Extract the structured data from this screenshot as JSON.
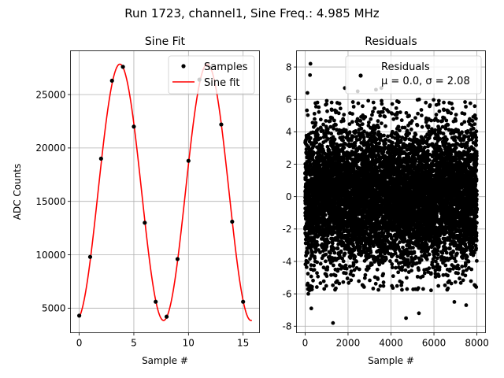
{
  "figure": {
    "suptitle": "Run 1723, channel1, Sine Freq.: 4.985 MHz"
  },
  "colors": {
    "samples": "#000000",
    "fit": "#ff0000",
    "residuals": "#000000",
    "grid": "#b0b0b0"
  },
  "chart_data": [
    {
      "type": "line",
      "title": "Sine Fit",
      "xlabel": "Sample #",
      "ylabel": "ADC Counts",
      "xlim": [
        -0.8,
        16.5
      ],
      "ylim": [
        2700,
        29100
      ],
      "xticks": [
        0,
        5,
        10,
        15
      ],
      "yticks": [
        5000,
        10000,
        15000,
        20000,
        25000
      ],
      "grid": true,
      "legend": {
        "placement": "top-right",
        "entries": [
          "Samples",
          "Sine fit"
        ]
      },
      "series": [
        {
          "name": "Samples",
          "type": "scatter",
          "x": [
            0,
            1,
            2,
            3,
            4,
            5,
            6,
            7,
            8,
            9,
            10,
            11,
            12,
            13,
            14,
            15
          ],
          "y": [
            4300,
            9800,
            19000,
            26300,
            27600,
            22000,
            13000,
            5600,
            4200,
            9600,
            18800,
            26400,
            27500,
            22200,
            13100,
            5600
          ]
        },
        {
          "name": "Sine fit",
          "type": "line",
          "model": {
            "offset": 15850,
            "amplitude": 12000,
            "period": 8.0,
            "peak_at": 3.72
          },
          "x_range": [
            0,
            15.8
          ],
          "n_points": 240
        }
      ]
    },
    {
      "type": "scatter",
      "title": "Residuals",
      "xlabel": "Sample #",
      "ylabel": "",
      "xlim": [
        -400,
        8400
      ],
      "ylim": [
        -8.4,
        9.0
      ],
      "xticks": [
        0,
        2000,
        4000,
        6000,
        8000
      ],
      "yticks": [
        -8,
        -6,
        -4,
        -2,
        0,
        2,
        4,
        6,
        8
      ],
      "grid": true,
      "legend": {
        "placement": "top-right",
        "entries": [
          "Residuals",
          "μ = 0.0, σ = 2.08"
        ]
      },
      "stats": {
        "mean": 0.0,
        "std": 2.08,
        "n": 8000
      },
      "series": [
        {
          "name": "Residuals",
          "outliers": [
            [
              250,
              8.2
            ],
            [
              230,
              7.5
            ],
            [
              110,
              6.4
            ],
            [
              1850,
              6.7
            ],
            [
              3300,
              6.6
            ],
            [
              3550,
              6.7
            ],
            [
              2450,
              6.5
            ],
            [
              150,
              -6.0
            ],
            [
              290,
              -6.9
            ],
            [
              1300,
              -7.8
            ],
            [
              4700,
              -7.5
            ],
            [
              5300,
              -7.2
            ],
            [
              6950,
              -6.5
            ],
            [
              7500,
              -6.7
            ]
          ]
        }
      ]
    }
  ]
}
